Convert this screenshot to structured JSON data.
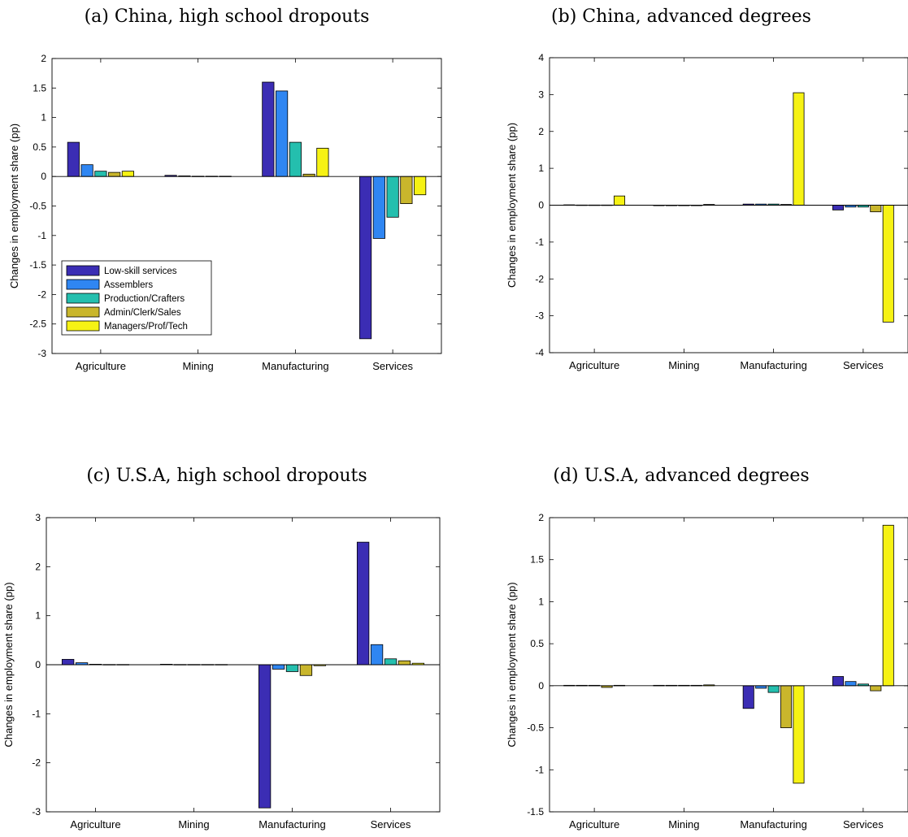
{
  "colors": {
    "Low-skill services": "#3b2db4",
    "Assemblers": "#2f86f2",
    "Production/Crafters": "#24bfae",
    "Admin/Clerk/Sales": "#c9b62c",
    "Managers/Prof/Tech": "#f6f214"
  },
  "chart_data": [
    {
      "type": "bar",
      "title": "(a) China, high school dropouts",
      "ylabel": "Changes in employment share (pp)",
      "xlabel": "",
      "ylim": [
        -3,
        2
      ],
      "yticks": [
        -3,
        -2.5,
        -2,
        -1.5,
        -1,
        -0.5,
        0,
        0.5,
        1,
        1.5,
        2
      ],
      "categories": [
        "Agriculture",
        "Mining",
        "Manufacturing",
        "Services"
      ],
      "legend": "bottom-left",
      "series": [
        {
          "name": "Low-skill services",
          "values": [
            0.58,
            0.02,
            1.6,
            -2.75
          ]
        },
        {
          "name": "Assemblers",
          "values": [
            0.2,
            0.01,
            1.45,
            -1.05
          ]
        },
        {
          "name": "Production/Crafters",
          "values": [
            0.09,
            0.005,
            0.58,
            -0.69
          ]
        },
        {
          "name": "Admin/Clerk/Sales",
          "values": [
            0.07,
            0.005,
            0.04,
            -0.46
          ]
        },
        {
          "name": "Managers/Prof/Tech",
          "values": [
            0.09,
            0.005,
            0.48,
            -0.31
          ]
        }
      ]
    },
    {
      "type": "bar",
      "title": "(b) China, advanced degrees",
      "ylabel": "Changes in employment share (pp)",
      "xlabel": "",
      "ylim": [
        -4,
        4
      ],
      "yticks": [
        -4,
        -3,
        -2,
        -1,
        0,
        1,
        2,
        3,
        4
      ],
      "categories": [
        "Agriculture",
        "Mining",
        "Manufacturing",
        "Services"
      ],
      "series": [
        {
          "name": "Low-skill services",
          "values": [
            0.01,
            0.0,
            0.03,
            -0.13
          ]
        },
        {
          "name": "Assemblers",
          "values": [
            0.005,
            0.0,
            0.03,
            -0.05
          ]
        },
        {
          "name": "Production/Crafters",
          "values": [
            0.005,
            0.0,
            0.03,
            -0.05
          ]
        },
        {
          "name": "Admin/Clerk/Sales",
          "values": [
            0.005,
            0.0,
            0.02,
            -0.18
          ]
        },
        {
          "name": "Managers/Prof/Tech",
          "values": [
            0.25,
            0.02,
            3.05,
            -3.17
          ]
        }
      ]
    },
    {
      "type": "bar",
      "title": "(c) U.S.A, high school dropouts",
      "ylabel": "Changes in employment share (pp)",
      "xlabel": "",
      "ylim": [
        -3,
        3
      ],
      "yticks": [
        -3,
        -2,
        -1,
        0,
        1,
        2,
        3
      ],
      "categories": [
        "Agriculture",
        "Mining",
        "Manufacturing",
        "Services"
      ],
      "series": [
        {
          "name": "Low-skill services",
          "values": [
            0.11,
            0.01,
            -2.92,
            2.5
          ]
        },
        {
          "name": "Assemblers",
          "values": [
            0.04,
            0.005,
            -0.09,
            0.41
          ]
        },
        {
          "name": "Production/Crafters",
          "values": [
            0.01,
            0.005,
            -0.14,
            0.12
          ]
        },
        {
          "name": "Admin/Clerk/Sales",
          "values": [
            0.005,
            0.005,
            -0.22,
            0.08
          ]
        },
        {
          "name": "Managers/Prof/Tech",
          "values": [
            0.005,
            0.005,
            -0.02,
            0.03
          ]
        }
      ]
    },
    {
      "type": "bar",
      "title": "(d) U.S.A, advanced degrees",
      "ylabel": "Changes in employment share (pp)",
      "xlabel": "",
      "ylim": [
        -1.5,
        2
      ],
      "yticks": [
        -1.5,
        -1,
        -0.5,
        0,
        0.5,
        1,
        1.5,
        2
      ],
      "categories": [
        "Agriculture",
        "Mining",
        "Manufacturing",
        "Services"
      ],
      "series": [
        {
          "name": "Low-skill services",
          "values": [
            0.005,
            0.005,
            -0.27,
            0.11
          ]
        },
        {
          "name": "Assemblers",
          "values": [
            0.005,
            0.005,
            -0.03,
            0.05
          ]
        },
        {
          "name": "Production/Crafters",
          "values": [
            0.005,
            0.005,
            -0.08,
            0.02
          ]
        },
        {
          "name": "Admin/Clerk/Sales",
          "values": [
            -0.02,
            0.005,
            -0.5,
            -0.06
          ]
        },
        {
          "name": "Managers/Prof/Tech",
          "values": [
            0.005,
            0.01,
            -1.16,
            1.91
          ]
        }
      ]
    }
  ]
}
